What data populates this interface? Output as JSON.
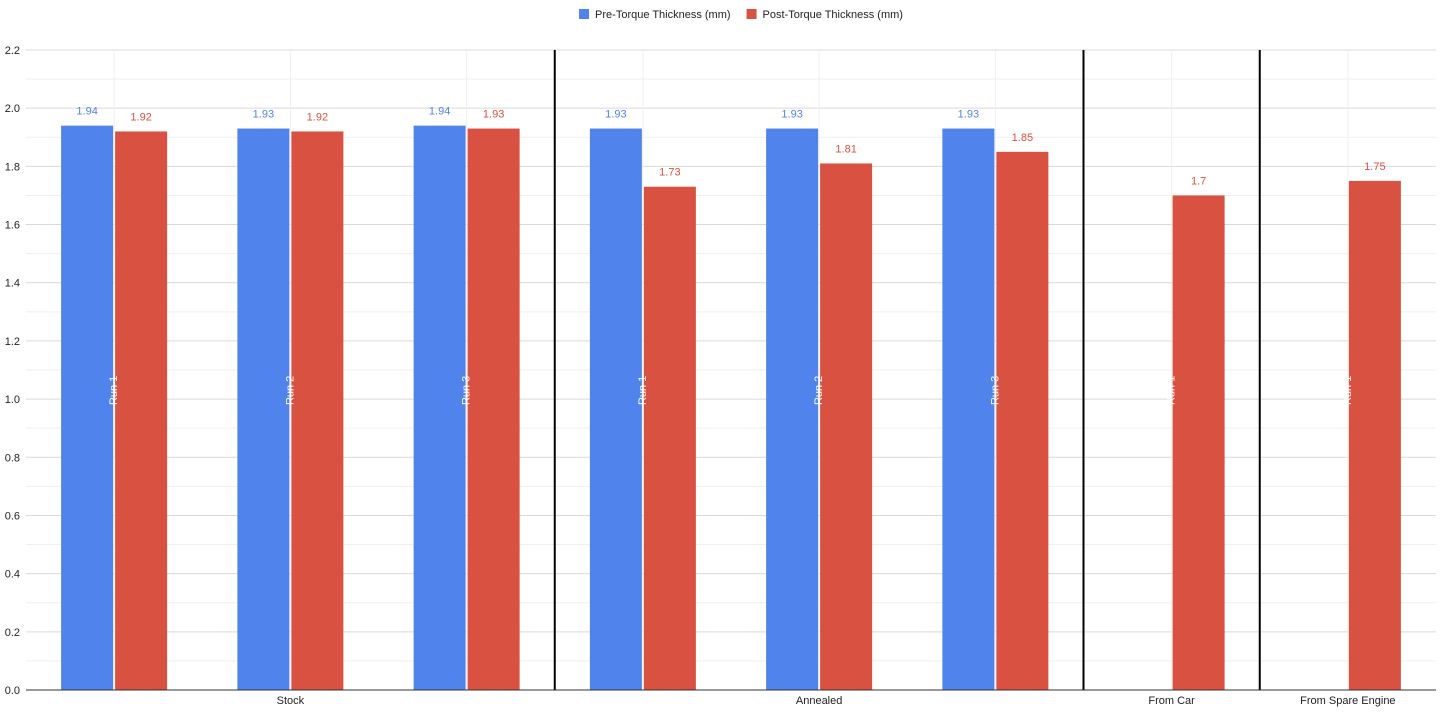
{
  "chart_data": {
    "type": "bar",
    "title": "",
    "xlabel": "",
    "ylabel": "",
    "ylim": [
      0,
      2.2
    ],
    "yticks": [
      0.0,
      0.2,
      0.4,
      0.6,
      0.8,
      1.0,
      1.2,
      1.4,
      1.6,
      1.8,
      2.0,
      2.2
    ],
    "ytick_labels": [
      "0.0",
      "0.2",
      "0.4",
      "0.6",
      "0.8",
      "1.0",
      "1.2",
      "1.4",
      "1.6",
      "1.8",
      "2.0",
      "2.2"
    ],
    "grid": true,
    "legend_position": "top-center",
    "series": [
      {
        "name": "Pre-Torque Thickness (mm)",
        "color": "#5083ec"
      },
      {
        "name": "Post-Torque Thickness (mm)",
        "color": "#d95140"
      }
    ],
    "groups": [
      {
        "label": "Stock",
        "runs": [
          {
            "label": "Run 1",
            "values": [
              1.94,
              1.92
            ],
            "value_labels": [
              "1.94",
              "1.92"
            ]
          },
          {
            "label": "Run 2",
            "values": [
              1.93,
              1.92
            ],
            "value_labels": [
              "1.93",
              "1.92"
            ]
          },
          {
            "label": "Run 3",
            "values": [
              1.94,
              1.93
            ],
            "value_labels": [
              "1.94",
              "1.93"
            ]
          }
        ]
      },
      {
        "label": "Annealed",
        "runs": [
          {
            "label": "Run 1",
            "values": [
              1.93,
              1.73
            ],
            "value_labels": [
              "1.93",
              "1.73"
            ]
          },
          {
            "label": "Run 2",
            "values": [
              1.93,
              1.81
            ],
            "value_labels": [
              "1.93",
              "1.81"
            ]
          },
          {
            "label": "Run 3",
            "values": [
              1.93,
              1.85
            ],
            "value_labels": [
              "1.93",
              "1.85"
            ]
          }
        ]
      },
      {
        "label": "From Car",
        "runs": [
          {
            "label": "Run 1",
            "values": [
              null,
              1.7
            ],
            "value_labels": [
              "",
              "1.7"
            ]
          }
        ]
      },
      {
        "label": "From Spare Engine",
        "runs": [
          {
            "label": "Run 1",
            "values": [
              null,
              1.75
            ],
            "value_labels": [
              "",
              "1.75"
            ]
          }
        ]
      }
    ]
  }
}
